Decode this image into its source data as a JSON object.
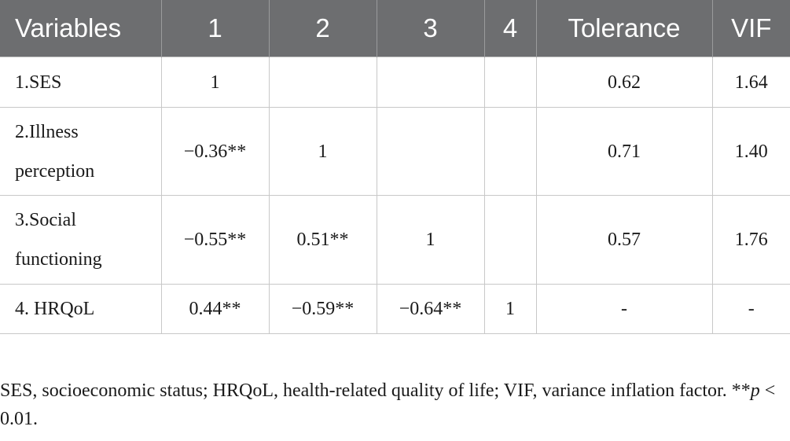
{
  "table": {
    "headers": [
      "Variables",
      "1",
      "2",
      "3",
      "4",
      "Tolerance",
      "VIF"
    ],
    "rows": [
      {
        "variable": "1.SES",
        "c1": "1",
        "c2": "",
        "c3": "",
        "c4": "",
        "tolerance": "0.62",
        "vif": "1.64"
      },
      {
        "variable": "2.Illness perception",
        "c1": "−0.36**",
        "c2": "1",
        "c3": "",
        "c4": "",
        "tolerance": "0.71",
        "vif": "1.40"
      },
      {
        "variable": "3.Social functioning",
        "c1": "−0.55**",
        "c2": "0.51**",
        "c3": "1",
        "c4": "",
        "tolerance": "0.57",
        "vif": "1.76"
      },
      {
        "variable": "4. HRQoL",
        "c1": "0.44**",
        "c2": "−0.59**",
        "c3": "−0.64**",
        "c4": "1",
        "tolerance": "-",
        "vif": "-"
      }
    ]
  },
  "footnote": {
    "text": "SES, socioeconomic status; HRQoL, health-related quality of life; VIF, variance inflation factor. **",
    "p_symbol": "p",
    "threshold": " < 0.01."
  },
  "colors": {
    "header_bg": "#6d6e70",
    "header_text": "#ffffff",
    "grid_line": "#c8c8c8"
  }
}
